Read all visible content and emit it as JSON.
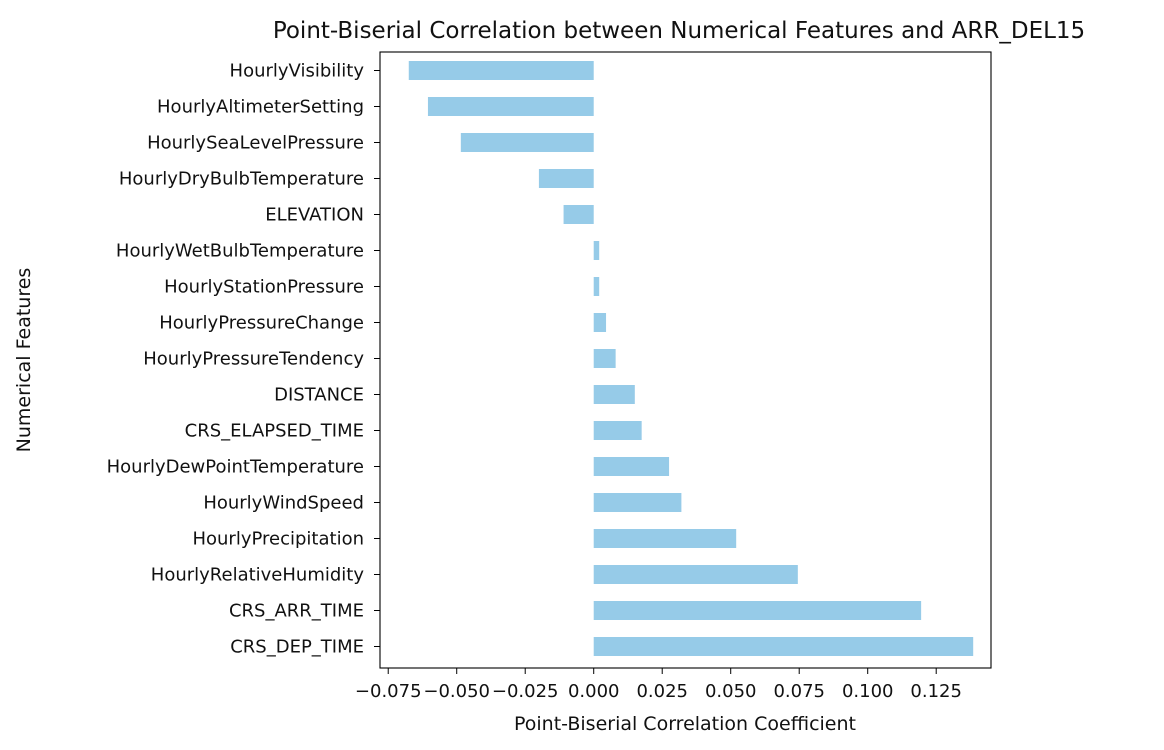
{
  "chart_data": {
    "type": "bar",
    "orientation": "horizontal",
    "title": "Point-Biserial Correlation between Numerical Features and ARR_DEL15",
    "xlabel": "Point-Biserial Correlation Coefficient",
    "ylabel": "Numerical Features",
    "bar_color": "#96cbe8",
    "grid": false,
    "xlim": [
      -0.078,
      0.145
    ],
    "xticks": [
      {
        "value": -0.075,
        "label": "−0.075"
      },
      {
        "value": -0.05,
        "label": "−0.050"
      },
      {
        "value": -0.025,
        "label": "−0.025"
      },
      {
        "value": 0.0,
        "label": "0.000"
      },
      {
        "value": 0.025,
        "label": "0.025"
      },
      {
        "value": 0.05,
        "label": "0.050"
      },
      {
        "value": 0.075,
        "label": "0.075"
      },
      {
        "value": 0.1,
        "label": "0.100"
      },
      {
        "value": 0.125,
        "label": "0.125"
      }
    ],
    "categories": [
      "HourlyVisibility",
      "HourlyAltimeterSetting",
      "HourlySeaLevelPressure",
      "HourlyDryBulbTemperature",
      "ELEVATION",
      "HourlyWetBulbTemperature",
      "HourlyStationPressure",
      "HourlyPressureChange",
      "HourlyPressureTendency",
      "DISTANCE",
      "CRS_ELAPSED_TIME",
      "HourlyDewPointTemperature",
      "HourlyWindSpeed",
      "HourlyPrecipitation",
      "HourlyRelativeHumidity",
      "CRS_ARR_TIME",
      "CRS_DEP_TIME"
    ],
    "values": [
      -0.0675,
      -0.0605,
      -0.0485,
      -0.02,
      -0.011,
      0.002,
      0.002,
      0.0045,
      0.008,
      0.015,
      0.0175,
      0.0275,
      0.032,
      0.052,
      0.0745,
      0.1195,
      0.1385
    ]
  }
}
